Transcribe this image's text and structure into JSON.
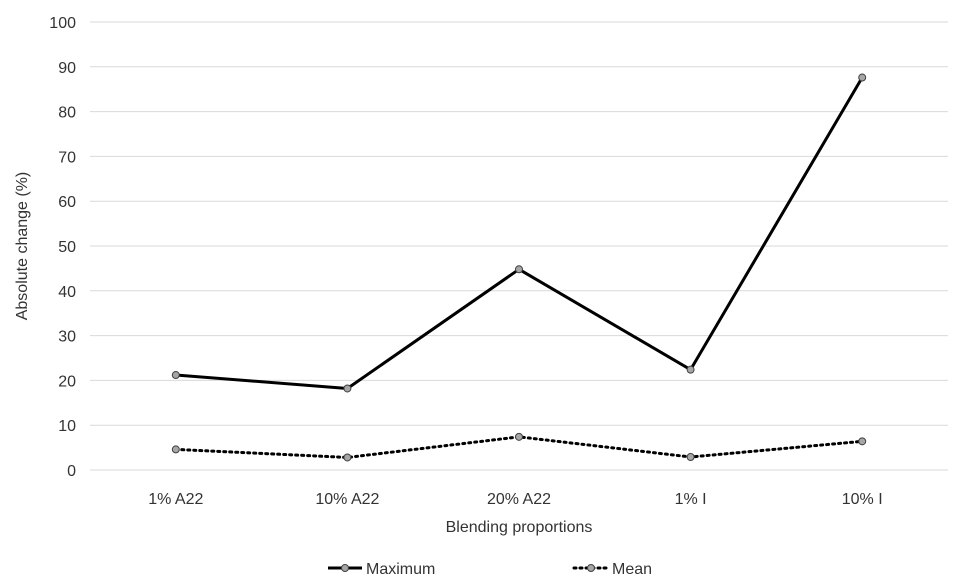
{
  "chart_data": {
    "type": "line",
    "categories": [
      "1% A22",
      "10% A22",
      "20% A22",
      "1% I",
      "10% I"
    ],
    "series": [
      {
        "name": "Maximum",
        "values": [
          21.2,
          18.2,
          44.8,
          22.4,
          87.6
        ],
        "line_style": "solid",
        "color": "#000000"
      },
      {
        "name": "Mean",
        "values": [
          4.6,
          2.8,
          7.4,
          2.9,
          6.4
        ],
        "line_style": "dotted",
        "color": "#000000"
      }
    ],
    "title": "",
    "xlabel": "Blending proportions",
    "ylabel": "Absolute change (%)",
    "ylim": [
      0,
      100
    ],
    "yticks": [
      0,
      10,
      20,
      30,
      40,
      50,
      60,
      70,
      80,
      90,
      100
    ],
    "grid": true,
    "legend_position": "bottom",
    "marker_color": "#a6a6a6"
  }
}
